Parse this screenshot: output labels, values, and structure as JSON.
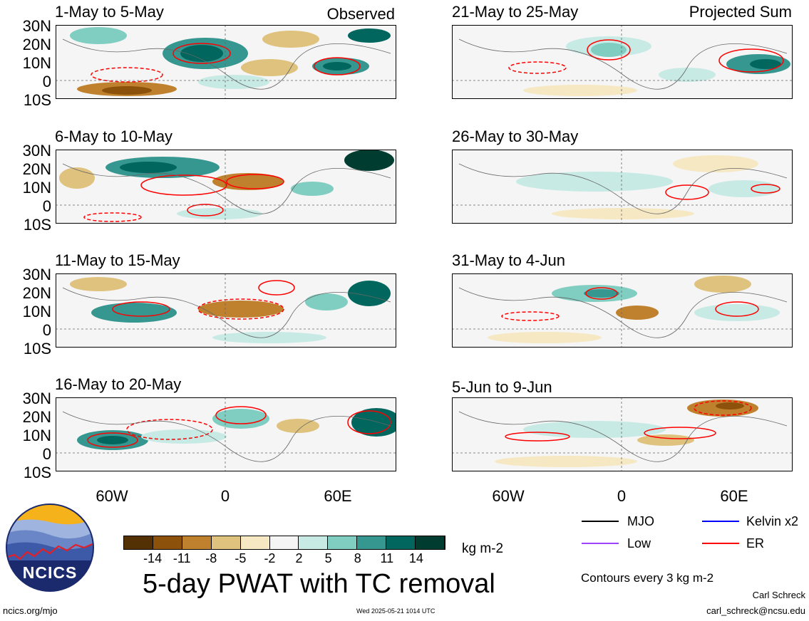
{
  "panels_left": [
    {
      "title": "1-May to 5-May",
      "tag": "Observed"
    },
    {
      "title": "6-May to 10-May",
      "tag": ""
    },
    {
      "title": "11-May to 15-May",
      "tag": ""
    },
    {
      "title": "16-May to 20-May",
      "tag": ""
    }
  ],
  "panels_right": [
    {
      "title": "21-May to 25-May",
      "tag": "Projected Sum"
    },
    {
      "title": "26-May to 30-May",
      "tag": ""
    },
    {
      "title": "31-May to 4-Jun",
      "tag": ""
    },
    {
      "title": "5-Jun to 9-Jun",
      "tag": ""
    }
  ],
  "lat_labels": [
    "30N",
    "20N",
    "10N",
    "0",
    "10S"
  ],
  "lon_labels": [
    "60W",
    "0",
    "60E"
  ],
  "colorbar": {
    "tick_labels": [
      "-14",
      "-11",
      "-8",
      "-5",
      "-2",
      "2",
      "5",
      "8",
      "11",
      "14"
    ],
    "colors": [
      "#543005",
      "#8c510a",
      "#bf812d",
      "#dfc27d",
      "#f6e8c3",
      "#f5f5f5",
      "#c7eae5",
      "#80cdc1",
      "#35978f",
      "#01665e",
      "#003c30"
    ],
    "units": "kg m-2"
  },
  "legend": {
    "items": [
      {
        "label": "MJO",
        "color": "#000000"
      },
      {
        "label": "Kelvin x2",
        "color": "#0000ff"
      },
      {
        "label": "Low",
        "color": "#a040ff"
      },
      {
        "label": "ER",
        "color": "#ff0000"
      }
    ],
    "contour_note": "Contours every 3 kg m-2"
  },
  "main_title": "5-day PWAT with TC removal",
  "logo_text": "NCICS",
  "footer": {
    "url": "ncics.org/mjo",
    "timestamp": "Wed 2025-05-21 1014 UTC",
    "author": "Carl Schreck",
    "email": "carl_schreck@ncsu.edu"
  }
}
